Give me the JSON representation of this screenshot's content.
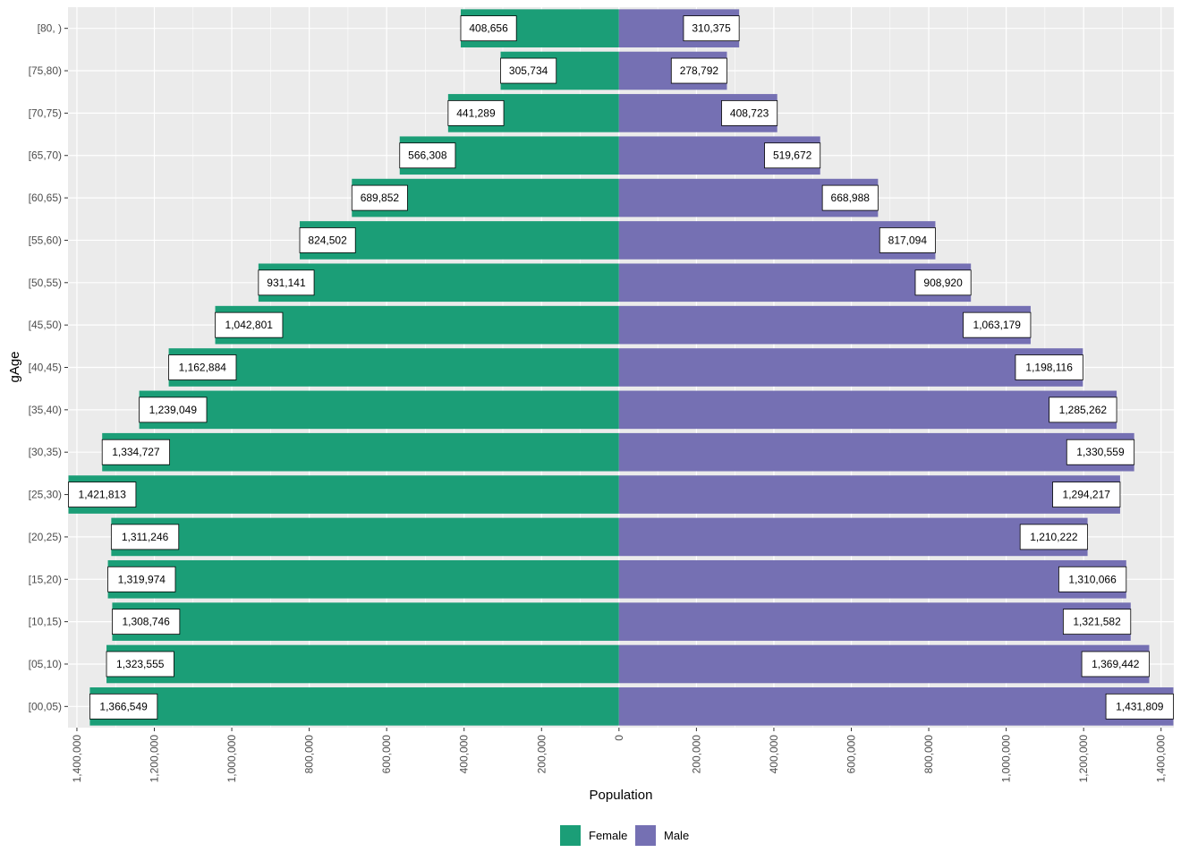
{
  "chart_data": {
    "type": "bar",
    "orientation": "horizontal",
    "title": "",
    "xlabel": "Population",
    "ylabel": "gAge",
    "xlim": [
      -1423000,
      1433000
    ],
    "x_ticks": [
      -1400000,
      -1200000,
      -1000000,
      -800000,
      -600000,
      -400000,
      -200000,
      0,
      200000,
      400000,
      600000,
      800000,
      1000000,
      1200000,
      1400000
    ],
    "x_tick_labels": [
      "1,400,000",
      "1,200,000",
      "1,000,000",
      "800,000",
      "600,000",
      "400,000",
      "200,000",
      "0",
      "200,000",
      "400,000",
      "600,000",
      "800,000",
      "1,000,000",
      "1,200,000",
      "1,400,000"
    ],
    "categories": [
      "[80, )",
      "[75,80)",
      "[70,75)",
      "[65,70)",
      "[60,65)",
      "[55,60)",
      "[50,55)",
      "[45,50)",
      "[40,45)",
      "[35,40)",
      "[30,35)",
      "[25,30)",
      "[20,25)",
      "[15,20)",
      "[10,15)",
      "[05,10)",
      "[00,05)"
    ],
    "series": [
      {
        "name": "Female",
        "color": "#1b9e77",
        "values": [
          408656,
          305734,
          441289,
          566308,
          689852,
          824502,
          931141,
          1042801,
          1162884,
          1239049,
          1334727,
          1421813,
          1311246,
          1319974,
          1308746,
          1323555,
          1366549
        ],
        "labels": [
          "408,656",
          "305,734",
          "441,289",
          "566,308",
          "689,852",
          "824,502",
          "931,141",
          "1,042,801",
          "1,162,884",
          "1,239,049",
          "1,334,727",
          "1,421,813",
          "1,311,246",
          "1,319,974",
          "1,308,746",
          "1,323,555",
          "1,366,549"
        ]
      },
      {
        "name": "Male",
        "color": "#7570b3",
        "values": [
          310375,
          278792,
          408723,
          519672,
          668988,
          817094,
          908920,
          1063179,
          1198116,
          1285262,
          1330559,
          1294217,
          1210222,
          1310066,
          1321582,
          1369442,
          1431809
        ],
        "labels": [
          "310,375",
          "278,792",
          "408,723",
          "519,672",
          "668,988",
          "817,094",
          "908,920",
          "1,063,179",
          "1,198,116",
          "1,285,262",
          "1,330,559",
          "1,294,217",
          "1,210,222",
          "1,310,066",
          "1,321,582",
          "1,369,442",
          "1,431,809"
        ]
      }
    ],
    "grid": true,
    "legend_position": "bottom"
  },
  "legend": {
    "female_label": "Female",
    "male_label": "Male",
    "female_color": "#1b9e77",
    "male_color": "#7570b3"
  }
}
